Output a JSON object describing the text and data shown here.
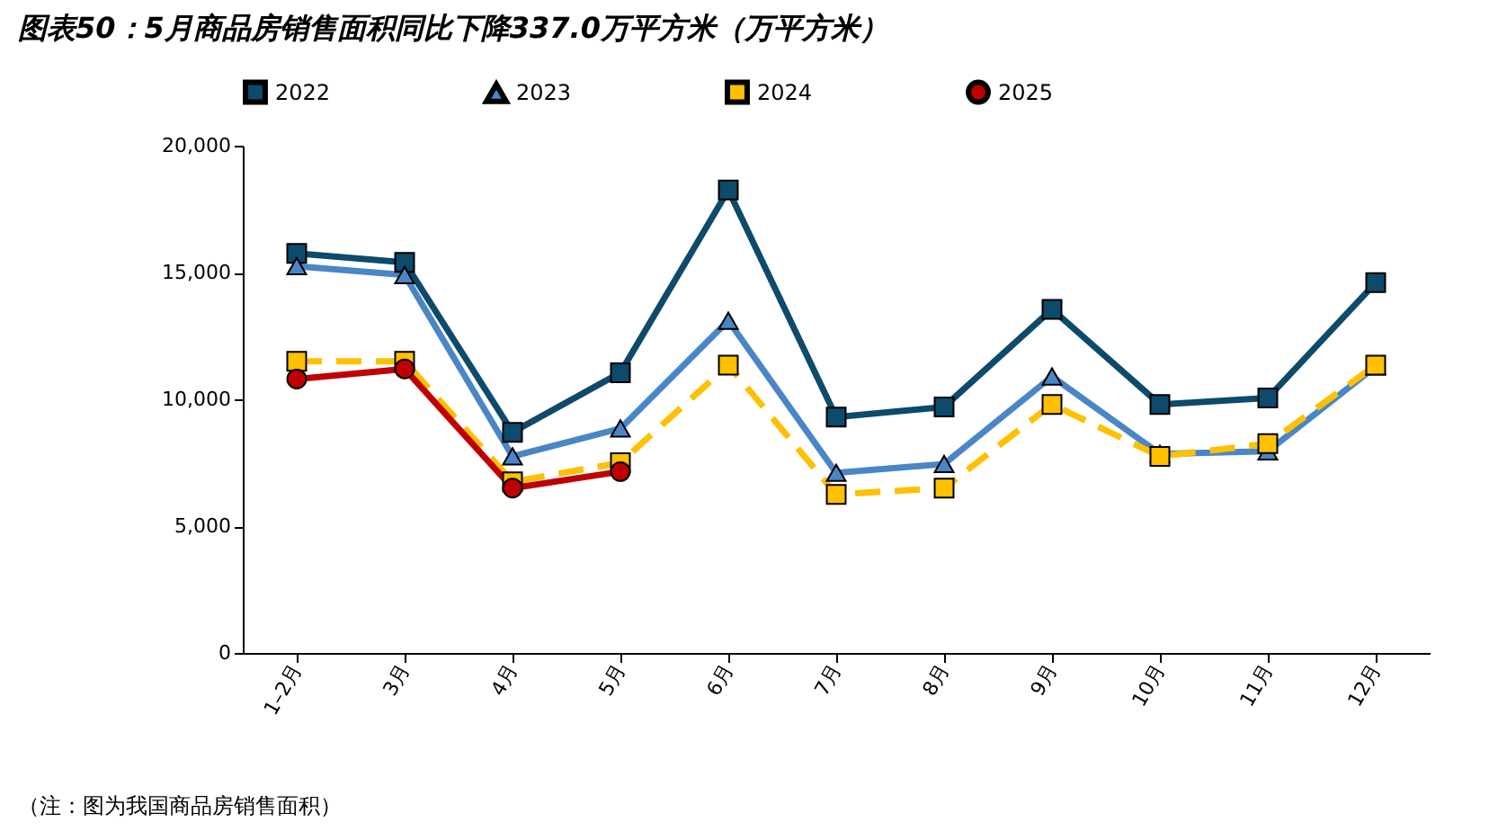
{
  "chart_data": {
    "type": "line",
    "title": "图表50：5月商品房销售面积同比下降337.0万平方米（万平方米）",
    "categories": [
      "1–2月",
      "3月",
      "4月",
      "5月",
      "6月",
      "7月",
      "8月",
      "9月",
      "10月",
      "11月",
      "12月"
    ],
    "series": [
      {
        "name": "2022",
        "color": "#0d4a6b",
        "marker": "square",
        "line_style": "solid",
        "values": [
          15750,
          15400,
          8700,
          11050,
          18250,
          9300,
          9700,
          13550,
          9800,
          10050,
          14600
        ]
      },
      {
        "name": "2023",
        "color": "#4a86c5",
        "marker": "triangle",
        "line_style": "solid",
        "values": [
          15250,
          14900,
          7750,
          8850,
          13100,
          7100,
          7450,
          10900,
          7850,
          7950,
          11300
        ]
      },
      {
        "name": "2024",
        "color": "#ffc000",
        "marker": "square",
        "line_style": "dashed",
        "values": [
          11500,
          11500,
          6750,
          7500,
          11350,
          6250,
          6500,
          9800,
          7750,
          8250,
          11350
        ]
      },
      {
        "name": "2025",
        "color": "#c00000",
        "marker": "circle",
        "line_style": "solid",
        "values": [
          10800,
          11200,
          6500,
          7150,
          null,
          null,
          null,
          null,
          null,
          null,
          null
        ]
      }
    ],
    "ylim": [
      0,
      20000
    ],
    "yticks": [
      0,
      {
        "value": 5000,
        "label": "5,000"
      },
      {
        "value": 10000,
        "label": "10,000"
      },
      {
        "value": 15000,
        "label": "15,000"
      },
      {
        "value": 20000,
        "label": "20,000"
      }
    ],
    "grid": false,
    "legend": "top",
    "annotations": [
      "（注：图为我国商品房销售面积）"
    ]
  }
}
